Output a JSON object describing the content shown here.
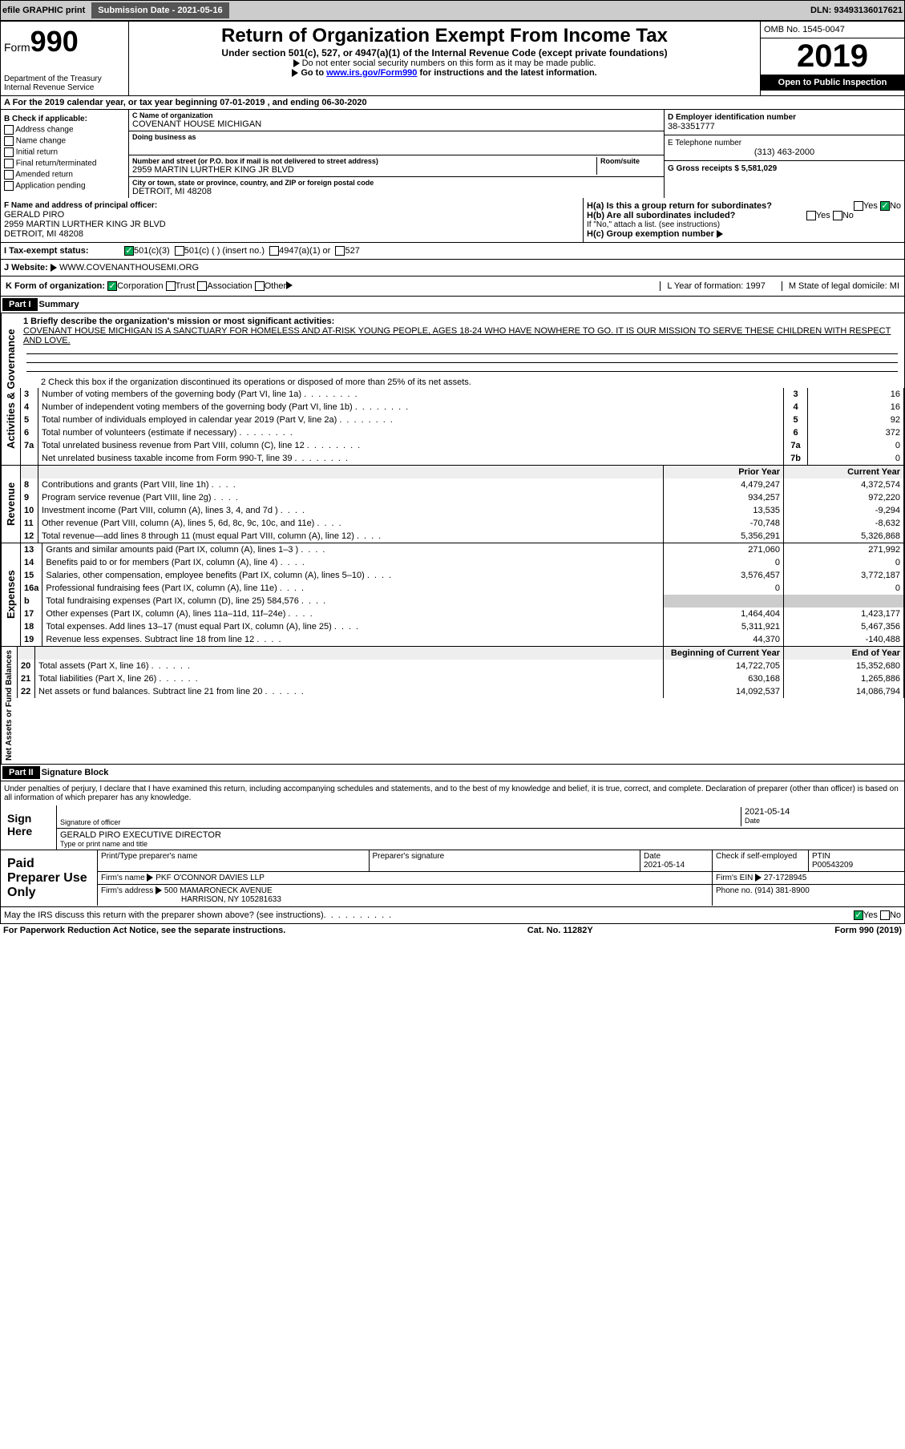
{
  "topbar": {
    "efile": "efile GRAPHIC print",
    "submission": "Submission Date - 2021-05-16",
    "dln": "DLN: 93493136017621"
  },
  "header": {
    "form_prefix": "Form",
    "form_number": "990",
    "dept": "Department of the Treasury",
    "irs": "Internal Revenue Service",
    "title": "Return of Organization Exempt From Income Tax",
    "sub1": "Under section 501(c), 527, or 4947(a)(1) of the Internal Revenue Code (except private foundations)",
    "sub2": "Do not enter social security numbers on this form as it may be made public.",
    "sub3_pre": "Go to ",
    "sub3_link": "www.irs.gov/Form990",
    "sub3_post": " for instructions and the latest information.",
    "omb": "OMB No. 1545-0047",
    "year": "2019",
    "open": "Open to Public Inspection"
  },
  "row_a": "A For the 2019 calendar year, or tax year beginning 07-01-2019    , and ending 06-30-2020",
  "col_b": {
    "title": "B Check if applicable:",
    "items": [
      "Address change",
      "Name change",
      "Initial return",
      "Final return/terminated",
      "Amended return",
      "Application pending"
    ]
  },
  "col_c": {
    "name_label": "C Name of organization",
    "name_val": "COVENANT HOUSE MICHIGAN",
    "dba_label": "Doing business as",
    "addr_label": "Number and street (or P.O. box if mail is not delivered to street address)",
    "room_label": "Room/suite",
    "addr_val": "2959 MARTIN LURTHER KING JR BLVD",
    "city_label": "City or town, state or province, country, and ZIP or foreign postal code",
    "city_val": "DETROIT, MI  48208"
  },
  "col_d": {
    "ein_label": "D Employer identification number",
    "ein_val": "38-3351777",
    "phone_label": "E Telephone number",
    "phone_val": "(313) 463-2000",
    "gross_label": "G Gross receipts $ 5,581,029"
  },
  "officer": {
    "label": "F  Name and address of principal officer:",
    "name": "GERALD PIRO",
    "addr1": "2959 MARTIN LURTHER KING JR BLVD",
    "addr2": "DETROIT, MI  48208",
    "ha": "H(a)  Is this a group return for subordinates?",
    "hb": "H(b)  Are all subordinates included?",
    "hb_note": "If \"No,\" attach a list. (see instructions)",
    "hc": "H(c)  Group exemption number",
    "yes": "Yes",
    "no": "No"
  },
  "status": {
    "label": "I   Tax-exempt status:",
    "opts": [
      "501(c)(3)",
      "501(c) (  )  (insert no.)",
      "4947(a)(1) or",
      "527"
    ]
  },
  "website": {
    "label": "J   Website:",
    "val": "WWW.COVENANTHOUSEMI.ORG"
  },
  "k_row": {
    "label": "K Form of organization:",
    "opts": [
      "Corporation",
      "Trust",
      "Association",
      "Other"
    ],
    "l": "L Year of formation: 1997",
    "m": "M State of legal domicile: MI"
  },
  "part1": {
    "header": "Part I",
    "title": "Summary",
    "line1_label": "1  Briefly describe the organization's mission or most significant activities:",
    "line1_text": "COVENANT HOUSE MICHIGAN IS A SANCTUARY FOR HOMELESS AND AT-RISK YOUNG PEOPLE, AGES 18-24 WHO HAVE NOWHERE TO GO. IT IS OUR MISSION TO SERVE THESE CHILDREN WITH RESPECT AND LOVE.",
    "line2": "2   Check this box      if the organization discontinued its operations or disposed of more than 25% of its net assets.",
    "vert_gov": "Activities & Governance",
    "vert_rev": "Revenue",
    "vert_exp": "Expenses",
    "vert_net": "Net Assets or Fund Balances"
  },
  "gov_lines": [
    {
      "n": "3",
      "t": "Number of voting members of the governing body (Part VI, line 1a)",
      "b": "3",
      "v": "16"
    },
    {
      "n": "4",
      "t": "Number of independent voting members of the governing body (Part VI, line 1b)",
      "b": "4",
      "v": "16"
    },
    {
      "n": "5",
      "t": "Total number of individuals employed in calendar year 2019 (Part V, line 2a)",
      "b": "5",
      "v": "92"
    },
    {
      "n": "6",
      "t": "Total number of volunteers (estimate if necessary)",
      "b": "6",
      "v": "372"
    },
    {
      "n": "7a",
      "t": "Total unrelated business revenue from Part VIII, column (C), line 12",
      "b": "7a",
      "v": "0"
    },
    {
      "n": "",
      "t": "Net unrelated business taxable income from Form 990-T, line 39",
      "b": "7b",
      "v": "0"
    }
  ],
  "py_cy_header": {
    "py": "Prior Year",
    "cy": "Current Year"
  },
  "rev_lines": [
    {
      "n": "8",
      "t": "Contributions and grants (Part VIII, line 1h)",
      "py": "4,479,247",
      "cy": "4,372,574"
    },
    {
      "n": "9",
      "t": "Program service revenue (Part VIII, line 2g)",
      "py": "934,257",
      "cy": "972,220"
    },
    {
      "n": "10",
      "t": "Investment income (Part VIII, column (A), lines 3, 4, and 7d )",
      "py": "13,535",
      "cy": "-9,294"
    },
    {
      "n": "11",
      "t": "Other revenue (Part VIII, column (A), lines 5, 6d, 8c, 9c, 10c, and 11e)",
      "py": "-70,748",
      "cy": "-8,632"
    },
    {
      "n": "12",
      "t": "Total revenue—add lines 8 through 11 (must equal Part VIII, column (A), line 12)",
      "py": "5,356,291",
      "cy": "5,326,868"
    }
  ],
  "exp_lines": [
    {
      "n": "13",
      "t": "Grants and similar amounts paid (Part IX, column (A), lines 1–3 )",
      "py": "271,060",
      "cy": "271,992"
    },
    {
      "n": "14",
      "t": "Benefits paid to or for members (Part IX, column (A), line 4)",
      "py": "0",
      "cy": "0"
    },
    {
      "n": "15",
      "t": "Salaries, other compensation, employee benefits (Part IX, column (A), lines 5–10)",
      "py": "3,576,457",
      "cy": "3,772,187"
    },
    {
      "n": "16a",
      "t": "Professional fundraising fees (Part IX, column (A), line 11e)",
      "py": "0",
      "cy": "0"
    },
    {
      "n": "b",
      "t": "Total fundraising expenses (Part IX, column (D), line 25)  584,576",
      "py": "",
      "cy": "",
      "shade": true
    },
    {
      "n": "17",
      "t": "Other expenses (Part IX, column (A), lines 11a–11d, 11f–24e)",
      "py": "1,464,404",
      "cy": "1,423,177"
    },
    {
      "n": "18",
      "t": "Total expenses. Add lines 13–17 (must equal Part IX, column (A), line 25)",
      "py": "5,311,921",
      "cy": "5,467,356"
    },
    {
      "n": "19",
      "t": "Revenue less expenses. Subtract line 18 from line 12",
      "py": "44,370",
      "cy": "-140,488"
    }
  ],
  "net_header": {
    "py": "Beginning of Current Year",
    "cy": "End of Year"
  },
  "net_lines": [
    {
      "n": "20",
      "t": "Total assets (Part X, line 16)",
      "py": "14,722,705",
      "cy": "15,352,680"
    },
    {
      "n": "21",
      "t": "Total liabilities (Part X, line 26)",
      "py": "630,168",
      "cy": "1,265,886"
    },
    {
      "n": "22",
      "t": "Net assets or fund balances. Subtract line 21 from line 20",
      "py": "14,092,537",
      "cy": "14,086,794"
    }
  ],
  "part2": {
    "header": "Part II",
    "title": "Signature Block",
    "perjury": "Under penalties of perjury, I declare that I have examined this return, including accompanying schedules and statements, and to the best of my knowledge and belief, it is true, correct, and complete. Declaration of preparer (other than officer) is based on all information of which preparer has any knowledge."
  },
  "sign": {
    "here": "Sign Here",
    "sig_label": "Signature of officer",
    "date_label": "Date",
    "date_val": "2021-05-14",
    "name_val": "GERALD PIRO  EXECUTIVE DIRECTOR",
    "name_label": "Type or print name and title"
  },
  "prep": {
    "label": "Paid Preparer Use Only",
    "pt_name": "Print/Type preparer's name",
    "pt_sig": "Preparer's signature",
    "pt_date": "Date",
    "pt_date_val": "2021-05-14",
    "pt_check": "Check      if self-employed",
    "ptin_label": "PTIN",
    "ptin_val": "P00543209",
    "firm_name_label": "Firm's name",
    "firm_name_val": "PKF O'CONNOR DAVIES LLP",
    "firm_ein_label": "Firm's EIN",
    "firm_ein_val": "27-1728945",
    "firm_addr_label": "Firm's address",
    "firm_addr1": "500 MAMARONECK AVENUE",
    "firm_addr2": "HARRISON, NY  105281633",
    "phone_label": "Phone no. (914) 381-8900"
  },
  "footer": {
    "discuss": "May the IRS discuss this return with the preparer shown above? (see instructions)",
    "yes": "Yes",
    "no": "No",
    "paperwork": "For Paperwork Reduction Act Notice, see the separate instructions.",
    "cat": "Cat. No. 11282Y",
    "form": "Form 990 (2019)"
  }
}
